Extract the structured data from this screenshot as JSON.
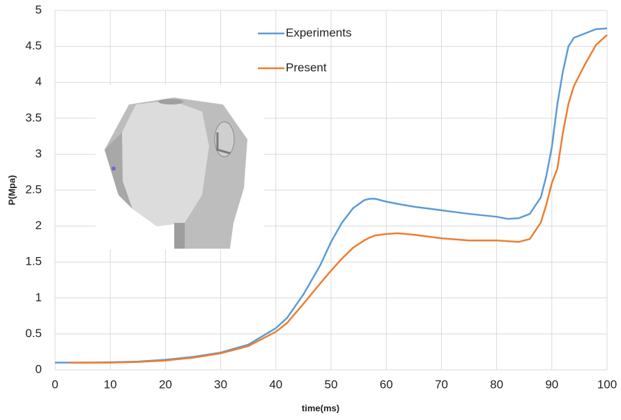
{
  "chart_data": {
    "type": "line",
    "x_label": "time(ms)",
    "y_label": "P(Mpa)",
    "x": [
      0,
      2.5,
      5,
      10,
      15,
      20,
      25,
      30,
      35,
      40,
      42,
      45,
      48,
      50,
      52,
      54,
      56,
      57,
      58,
      60,
      62,
      65,
      70,
      75,
      80,
      82,
      84,
      86,
      88,
      89,
      90,
      91,
      92,
      93,
      94,
      96,
      98,
      100
    ],
    "series": [
      {
        "name": "Experiments",
        "color": "#5b9bd5",
        "values": [
          0.1,
          0.1,
          0.1,
          0.105,
          0.115,
          0.14,
          0.18,
          0.24,
          0.35,
          0.58,
          0.72,
          1.05,
          1.45,
          1.78,
          2.05,
          2.25,
          2.36,
          2.38,
          2.38,
          2.34,
          2.31,
          2.27,
          2.22,
          2.17,
          2.13,
          2.1,
          2.11,
          2.17,
          2.4,
          2.7,
          3.1,
          3.7,
          4.15,
          4.5,
          4.62,
          4.68,
          4.74,
          4.75
        ]
      },
      {
        "name": "Present",
        "color": "#ed7d31",
        "values": [
          null,
          0.1,
          0.1,
          0.1,
          0.11,
          0.13,
          0.17,
          0.23,
          0.33,
          0.53,
          0.65,
          0.92,
          1.2,
          1.38,
          1.55,
          1.7,
          1.8,
          1.84,
          1.87,
          1.89,
          1.9,
          1.88,
          1.83,
          1.8,
          1.8,
          1.79,
          1.78,
          1.82,
          2.05,
          2.3,
          2.6,
          2.8,
          3.3,
          3.7,
          3.95,
          4.25,
          4.52,
          4.66
        ]
      }
    ],
    "xlim": [
      0,
      100
    ],
    "xticks": [
      0,
      10,
      20,
      30,
      40,
      50,
      60,
      70,
      80,
      90,
      100
    ],
    "ylim": [
      0,
      5
    ],
    "yticks": [
      0,
      0.5,
      1,
      1.5,
      2,
      2.5,
      3,
      3.5,
      4,
      4.5,
      5
    ],
    "grid": true
  }
}
